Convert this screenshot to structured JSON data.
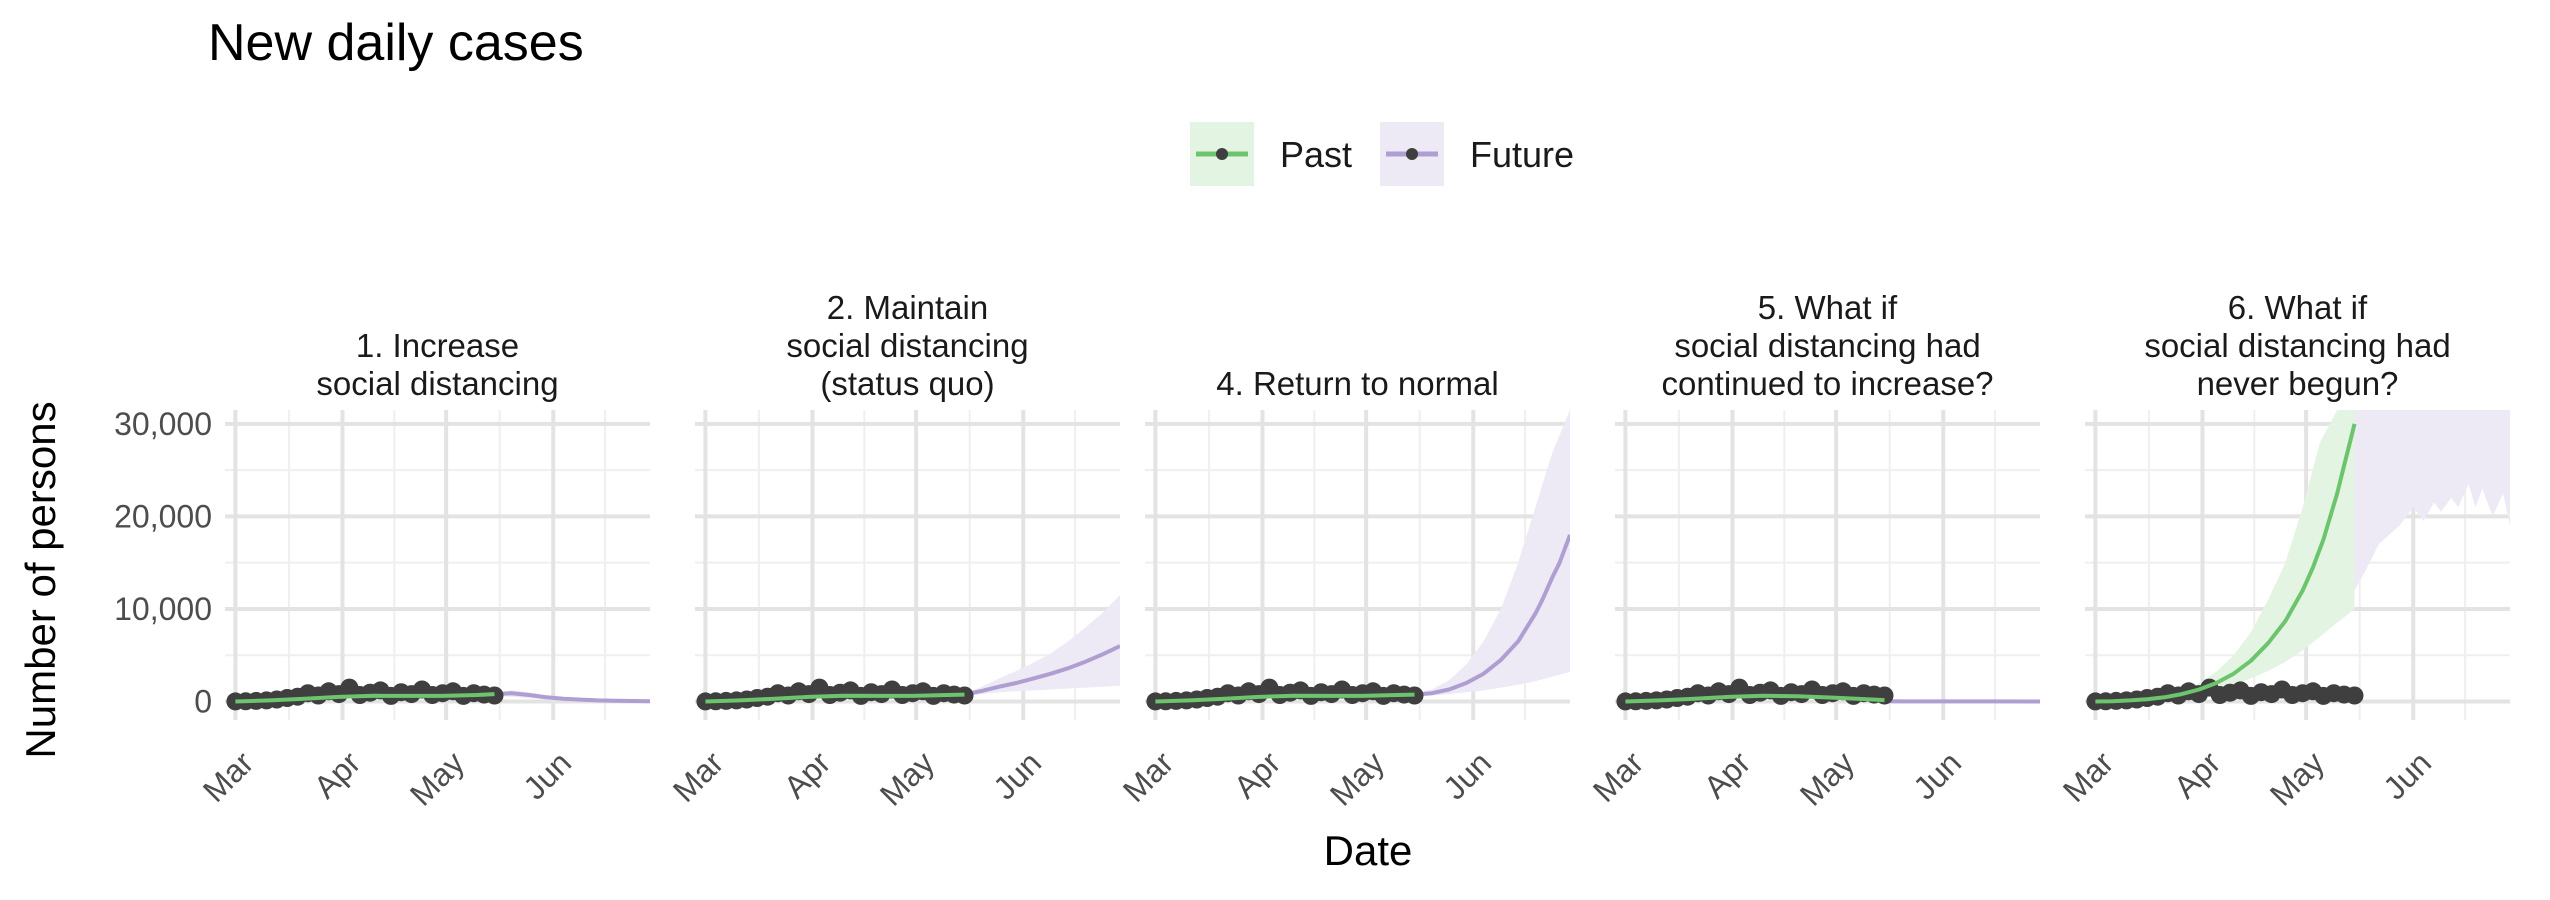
{
  "chart_data": {
    "type": "line",
    "title": "New daily cases",
    "xlabel": "Date",
    "ylabel": "Number of persons",
    "x_ticks": [
      "Mar",
      "Apr",
      "May",
      "Jun"
    ],
    "y_ticks": [
      0,
      10000,
      20000,
      30000
    ],
    "y_tick_labels": [
      "0",
      "10,000",
      "20,000",
      "30,000"
    ],
    "ylim": [
      -2000,
      31500
    ],
    "x_range_days": [
      -3,
      120
    ],
    "x_origin_date": "2020-03-01",
    "legend": {
      "position": "top",
      "entries": [
        {
          "label": "Past",
          "color": "#6cc56c",
          "band_color": "#e4f4e3"
        },
        {
          "label": "Future",
          "color": "#ae9ed1",
          "band_color": "#ede9f5"
        }
      ]
    },
    "observed_color": "#3f3f3f",
    "grid": true,
    "observed_points": {
      "x_days": [
        0,
        3,
        6,
        9,
        12,
        15,
        18,
        21,
        24,
        27,
        30,
        33,
        36,
        39,
        42,
        45,
        48,
        51,
        54,
        57,
        60,
        63,
        66,
        69,
        72,
        75
      ],
      "y": [
        5,
        20,
        60,
        120,
        220,
        380,
        520,
        900,
        650,
        1100,
        800,
        1500,
        700,
        950,
        1200,
        600,
        1000,
        800,
        1300,
        700,
        900,
        1100,
        600,
        900,
        750,
        650
      ]
    },
    "panels": [
      {
        "label": "1. Increase\nsocial distancing",
        "past": {
          "x_days": [
            0,
            10,
            20,
            30,
            40,
            50,
            60,
            70,
            75
          ],
          "y": [
            0,
            120,
            300,
            500,
            620,
            600,
            600,
            700,
            800
          ]
        },
        "future": {
          "x_days": [
            75,
            80,
            85,
            90,
            95,
            100,
            105,
            110,
            115,
            120
          ],
          "y": [
            800,
            900,
            700,
            450,
            300,
            200,
            120,
            80,
            50,
            30
          ]
        },
        "future_band": {
          "x_days": [
            75,
            80,
            85,
            90,
            95,
            100,
            105,
            110,
            115,
            120
          ],
          "lo": [
            600,
            500,
            350,
            200,
            120,
            80,
            40,
            20,
            10,
            5
          ],
          "hi": [
            1000,
            1200,
            1000,
            700,
            450,
            300,
            200,
            140,
            100,
            70
          ]
        }
      },
      {
        "label": "2. Maintain\nsocial distancing\n(status quo)",
        "past": {
          "x_days": [
            0,
            10,
            20,
            30,
            40,
            50,
            60,
            70,
            75
          ],
          "y": [
            0,
            120,
            300,
            500,
            620,
            600,
            600,
            700,
            750
          ]
        },
        "future": {
          "x_days": [
            75,
            80,
            85,
            90,
            95,
            100,
            105,
            110,
            115,
            120
          ],
          "y": [
            750,
            1150,
            1600,
            2000,
            2500,
            3000,
            3600,
            4300,
            5100,
            6000
          ]
        },
        "future_band": {
          "x_days": [
            75,
            80,
            85,
            90,
            95,
            100,
            105,
            110,
            115,
            120
          ],
          "lo": [
            600,
            800,
            1000,
            1100,
            1200,
            1300,
            1400,
            1500,
            1600,
            1700
          ],
          "hi": [
            900,
            1600,
            2500,
            3300,
            4200,
            5200,
            6500,
            8000,
            9600,
            11500
          ]
        }
      },
      {
        "label": "4. Return to normal",
        "past": {
          "x_days": [
            0,
            10,
            20,
            30,
            40,
            50,
            60,
            70,
            75
          ],
          "y": [
            0,
            120,
            300,
            500,
            620,
            600,
            600,
            700,
            750
          ]
        },
        "future": {
          "x_days": [
            75,
            80,
            85,
            90,
            95,
            100,
            105,
            110,
            112,
            115,
            117,
            120
          ],
          "y": [
            750,
            900,
            1300,
            2000,
            3000,
            4500,
            6500,
            9500,
            11000,
            13500,
            15000,
            18000
          ]
        },
        "future_band": {
          "x_days": [
            75,
            80,
            85,
            90,
            95,
            100,
            105,
            110,
            115,
            120
          ],
          "lo": [
            600,
            650,
            800,
            1000,
            1200,
            1500,
            1800,
            2200,
            2700,
            3200
          ],
          "hi": [
            900,
            1300,
            2300,
            4000,
            6500,
            10000,
            15000,
            21000,
            27000,
            31500
          ]
        }
      },
      {
        "label": "5. What if\nsocial distancing had\ncontinued to increase?",
        "past": {
          "x_days": [
            0,
            10,
            20,
            30,
            40,
            50,
            60,
            70,
            75
          ],
          "y": [
            0,
            120,
            300,
            500,
            620,
            560,
            420,
            250,
            150
          ]
        },
        "future": {
          "x_days": [
            75,
            90,
            105,
            120
          ],
          "y": [
            20,
            10,
            5,
            0
          ]
        },
        "future_band": {
          "x_days": [
            75,
            90,
            105,
            120
          ],
          "lo": [
            0,
            0,
            0,
            0
          ],
          "hi": [
            60,
            30,
            15,
            5
          ]
        }
      },
      {
        "label": "6. What if\nsocial distancing had\nnever begun?",
        "past": {
          "x_days": [
            0,
            5,
            10,
            15,
            20,
            25,
            30,
            35,
            40,
            45,
            50,
            55,
            60,
            63,
            66,
            68,
            70,
            72,
            74,
            75
          ],
          "y": [
            0,
            30,
            120,
            250,
            450,
            800,
            1300,
            2000,
            3000,
            4400,
            6300,
            8700,
            12000,
            14500,
            17500,
            20000,
            22500,
            25500,
            28500,
            30000
          ]
        },
        "past_band": {
          "x_days": [
            0,
            10,
            20,
            30,
            35,
            40,
            45,
            50,
            55,
            60,
            65,
            70,
            75
          ],
          "lo": [
            0,
            80,
            300,
            800,
            1300,
            1800,
            2500,
            3300,
            4300,
            5500,
            7000,
            8500,
            10000
          ],
          "hi": [
            0,
            200,
            700,
            2000,
            3200,
            5000,
            7500,
            11000,
            15000,
            21000,
            28000,
            31500,
            31500
          ]
        },
        "future": {
          "x_days": [],
          "y": []
        },
        "future_band": {
          "x_days": [
            75,
            78,
            80,
            82,
            85,
            88,
            90,
            92,
            95,
            98,
            100,
            103,
            105,
            108,
            110,
            112,
            115,
            118,
            120
          ],
          "lo": [
            12000,
            14000,
            15500,
            17000,
            18000,
            19000,
            20000,
            21000,
            19500,
            21500,
            20500,
            22000,
            21000,
            23500,
            21000,
            23000,
            20000,
            22500,
            19000
          ],
          "hi": [
            31500,
            31500,
            31500,
            31500,
            31500,
            31500,
            31500,
            31500,
            31500,
            31500,
            31500,
            31500,
            31500,
            31500,
            31500,
            31500,
            31500,
            31500,
            31500
          ]
        }
      }
    ]
  }
}
